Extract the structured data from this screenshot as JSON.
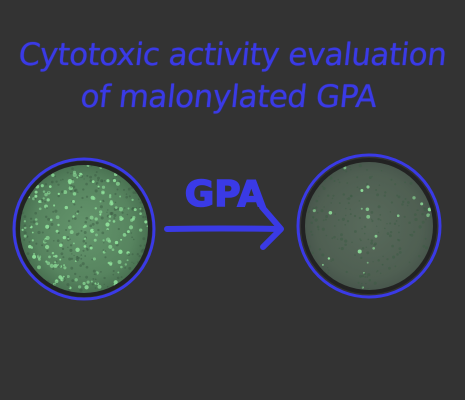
{
  "title": {
    "line1": "Cytotoxic activity evaluation",
    "line2": "of malonylated GPA"
  },
  "arrow": {
    "label": "GPA"
  },
  "colors": {
    "background": "#333333",
    "ink": "#3a3ae6",
    "cells_bright": "#5e8f67",
    "cells_dim": "#4e5f52"
  },
  "panels": [
    {
      "name": "before-treatment",
      "state": "dense-fluorescent-cells"
    },
    {
      "name": "after-treatment",
      "state": "sparse-fluorescent-cells"
    }
  ]
}
